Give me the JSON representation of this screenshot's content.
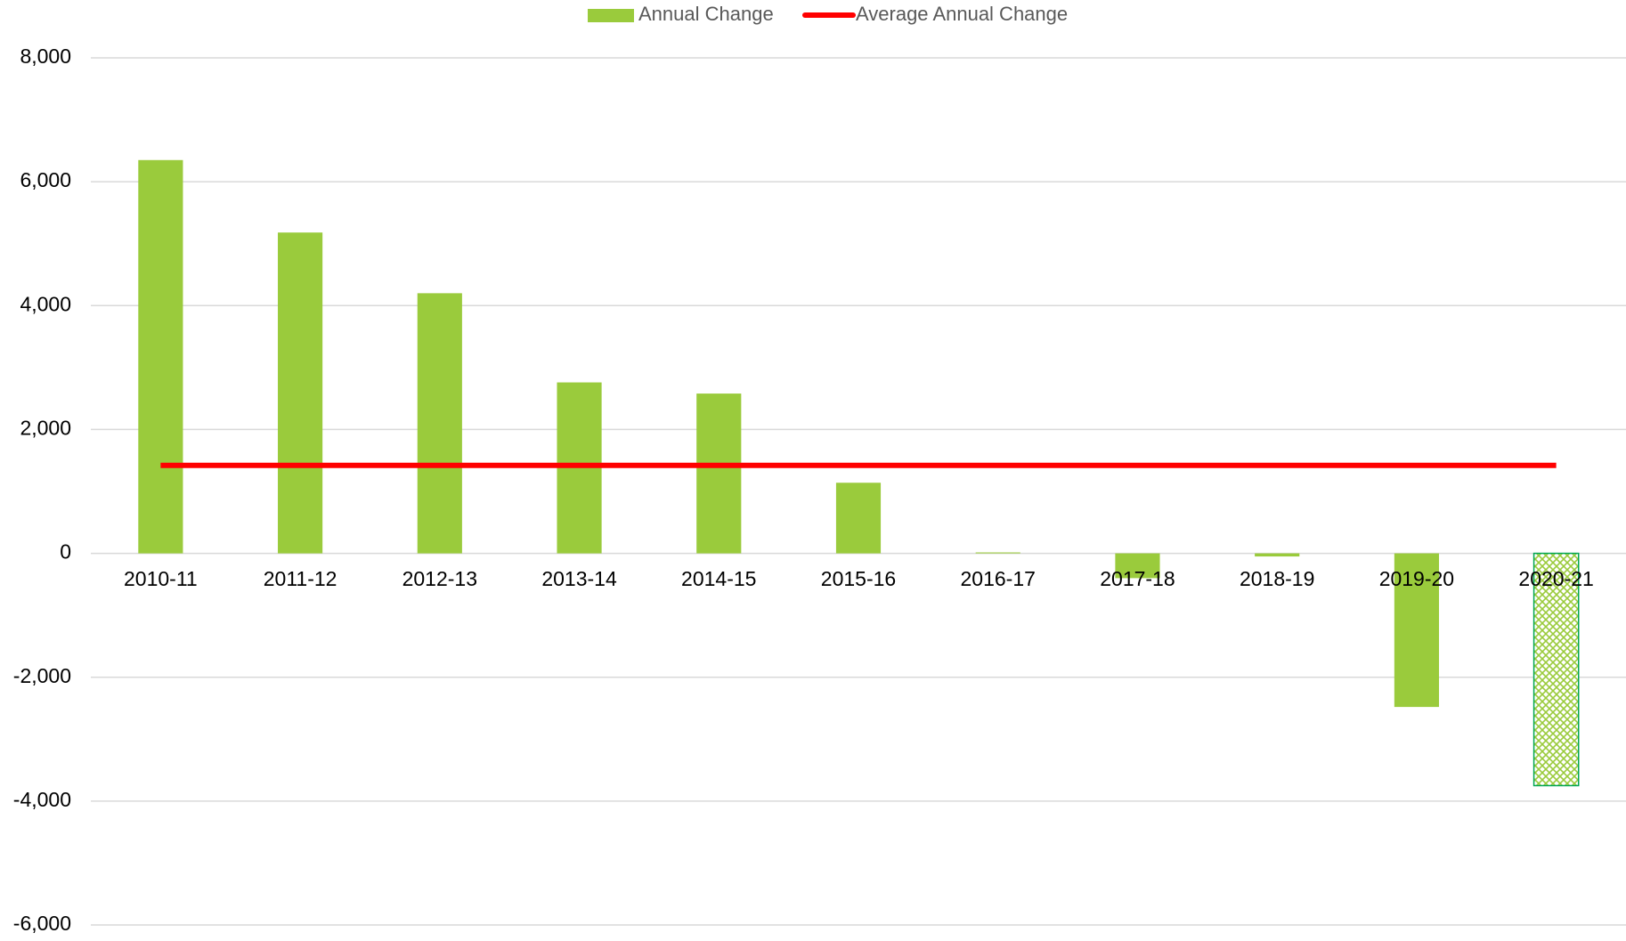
{
  "chart_data": {
    "type": "bar",
    "categories": [
      "2010-11",
      "2011-12",
      "2012-13",
      "2013-14",
      "2014-15",
      "2015-16",
      "2016-17",
      "2017-18",
      "2018-19",
      "2019-20",
      "2020-21"
    ],
    "series": [
      {
        "name": "Annual Change",
        "color": "#9acb3c",
        "values": [
          6350,
          5180,
          4200,
          2760,
          2580,
          1140,
          15,
          -400,
          -50,
          -2480,
          -3750
        ],
        "patterns": [
          "solid",
          "solid",
          "solid",
          "solid",
          "solid",
          "solid",
          "solid",
          "solid",
          "solid",
          "solid",
          "hatched"
        ]
      }
    ],
    "average": {
      "name": "Average Annual Change",
      "color": "#ff0000",
      "value": 1420
    },
    "ylim": [
      -6000,
      8000
    ],
    "yticks": [
      {
        "value": -6000,
        "label": "-6,000"
      },
      {
        "value": -4000,
        "label": "-4,000"
      },
      {
        "value": -2000,
        "label": "-2,000"
      },
      0,
      {
        "value": 2000,
        "label": "2,000"
      },
      {
        "value": 4000,
        "label": "4,000"
      },
      {
        "value": 6000,
        "label": "6,000"
      },
      {
        "value": 8000,
        "label": "8,000"
      }
    ],
    "grid": true,
    "legend": "top"
  }
}
